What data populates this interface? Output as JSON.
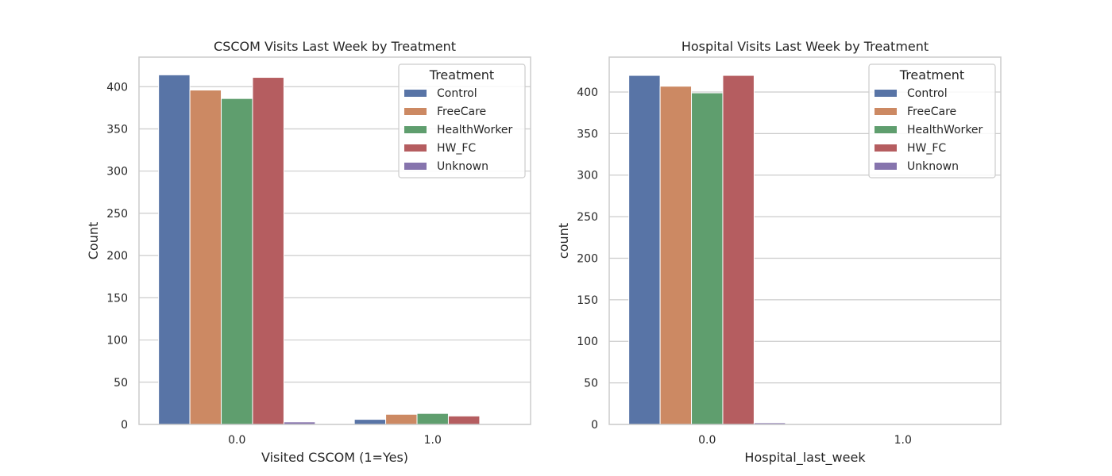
{
  "colors": {
    "Control": "#5874a6",
    "FreeCare": "#cc8963",
    "HealthWorker": "#5f9e6e",
    "HW_FC": "#b55d60",
    "Unknown": "#8674ad",
    "grid": "#cccccc",
    "spine": "#cccccc",
    "text": "#262626"
  },
  "chart_data": [
    {
      "type": "bar",
      "title": "CSCOM Visits Last Week by Treatment",
      "xlabel": "Visited CSCOM (1=Yes)",
      "ylabel": "Count",
      "categories": [
        "0.0",
        "1.0"
      ],
      "ylim": [
        0,
        435
      ],
      "yticks": [
        0,
        50,
        100,
        150,
        200,
        250,
        300,
        350,
        400
      ],
      "grid": true,
      "legend": {
        "title": "Treatment",
        "placement": "top-right"
      },
      "series": [
        {
          "name": "Control",
          "values": [
            414,
            6
          ]
        },
        {
          "name": "FreeCare",
          "values": [
            396,
            12
          ]
        },
        {
          "name": "HealthWorker",
          "values": [
            386,
            13
          ]
        },
        {
          "name": "HW_FC",
          "values": [
            411,
            10
          ]
        },
        {
          "name": "Unknown",
          "values": [
            3,
            0
          ]
        }
      ]
    },
    {
      "type": "bar",
      "title": "Hospital Visits Last Week by Treatment",
      "xlabel": "Hospital_last_week",
      "ylabel": "count",
      "categories": [
        "0.0",
        "1.0"
      ],
      "ylim": [
        0,
        442
      ],
      "yticks": [
        0,
        50,
        100,
        150,
        200,
        250,
        300,
        350,
        400
      ],
      "grid": true,
      "legend": {
        "title": "Treatment",
        "placement": "top-right"
      },
      "series": [
        {
          "name": "Control",
          "values": [
            420,
            0
          ]
        },
        {
          "name": "FreeCare",
          "values": [
            407,
            0
          ]
        },
        {
          "name": "HealthWorker",
          "values": [
            399,
            0
          ]
        },
        {
          "name": "HW_FC",
          "values": [
            420,
            0
          ]
        },
        {
          "name": "Unknown",
          "values": [
            2,
            0
          ]
        }
      ]
    }
  ]
}
